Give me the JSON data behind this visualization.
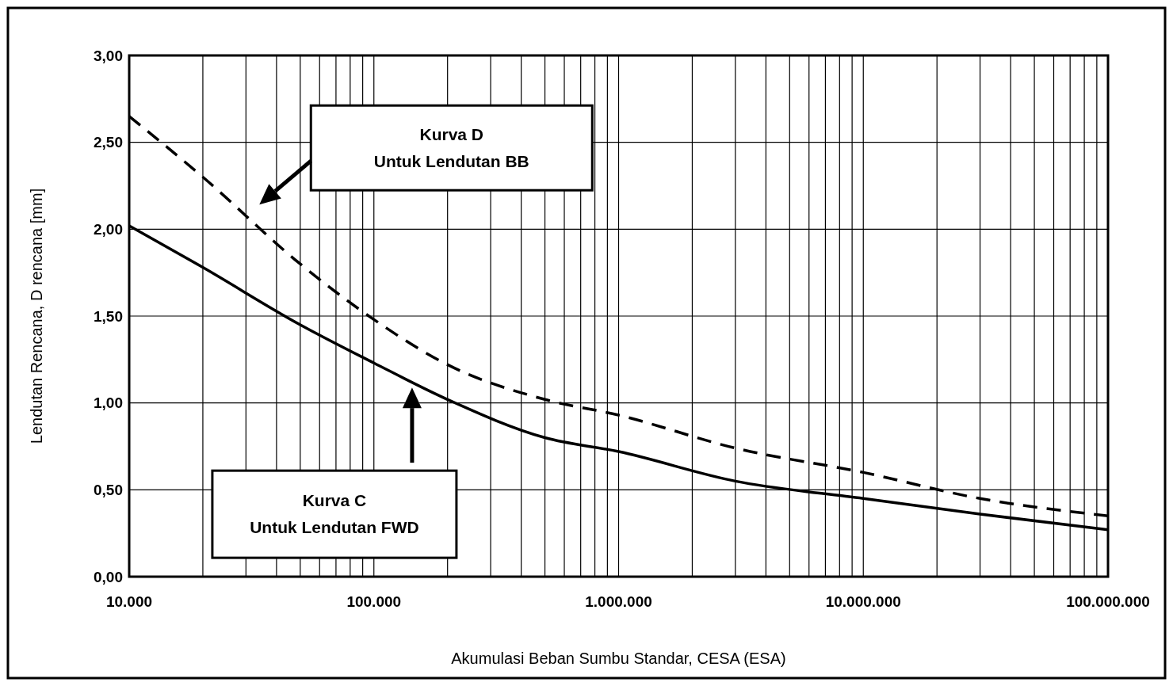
{
  "chart_data": {
    "type": "line",
    "xlabel": "Akumulasi Beban Sumbu Standar, CESA (ESA)",
    "ylabel": "Lendutan Rencana, D rencana  [mm]",
    "log": "x",
    "grid": true,
    "xlim": [
      10000,
      100000000
    ],
    "ylim": [
      0,
      3
    ],
    "xticks": [
      {
        "value": 10000,
        "label": "10.000"
      },
      {
        "value": 100000,
        "label": "100.000"
      },
      {
        "value": 1000000,
        "label": "1.000.000"
      },
      {
        "value": 10000000,
        "label": "10.000.000"
      },
      {
        "value": 100000000,
        "label": "100.000.000"
      }
    ],
    "yticks": [
      {
        "value": 0,
        "label": "0,00"
      },
      {
        "value": 0.5,
        "label": "0,50"
      },
      {
        "value": 1,
        "label": "1,00"
      },
      {
        "value": 1.5,
        "label": "1,50"
      },
      {
        "value": 2,
        "label": "2,00"
      },
      {
        "value": 2.5,
        "label": "2,50"
      },
      {
        "value": 3,
        "label": "3,00"
      }
    ],
    "x": [
      10000,
      20000,
      50000,
      100000,
      200000,
      500000,
      1000000,
      3000000,
      10000000,
      30000000,
      100000000
    ],
    "series": [
      {
        "color": "#000000",
        "line_style": "dashed",
        "values": [
          2.65,
          2.3,
          1.8,
          1.48,
          1.22,
          1.02,
          0.93,
          0.74,
          0.6,
          0.45,
          0.35
        ]
      },
      {
        "color": "#000000",
        "line_style": "solid",
        "values": [
          2.02,
          1.78,
          1.45,
          1.23,
          1.02,
          0.8,
          0.72,
          0.55,
          0.45,
          0.36,
          0.27
        ]
      }
    ],
    "annotations": [
      "Kurva D\nUntuk Lendutan BB",
      "Kurva C\nUntuk Lendutan FWD"
    ]
  }
}
